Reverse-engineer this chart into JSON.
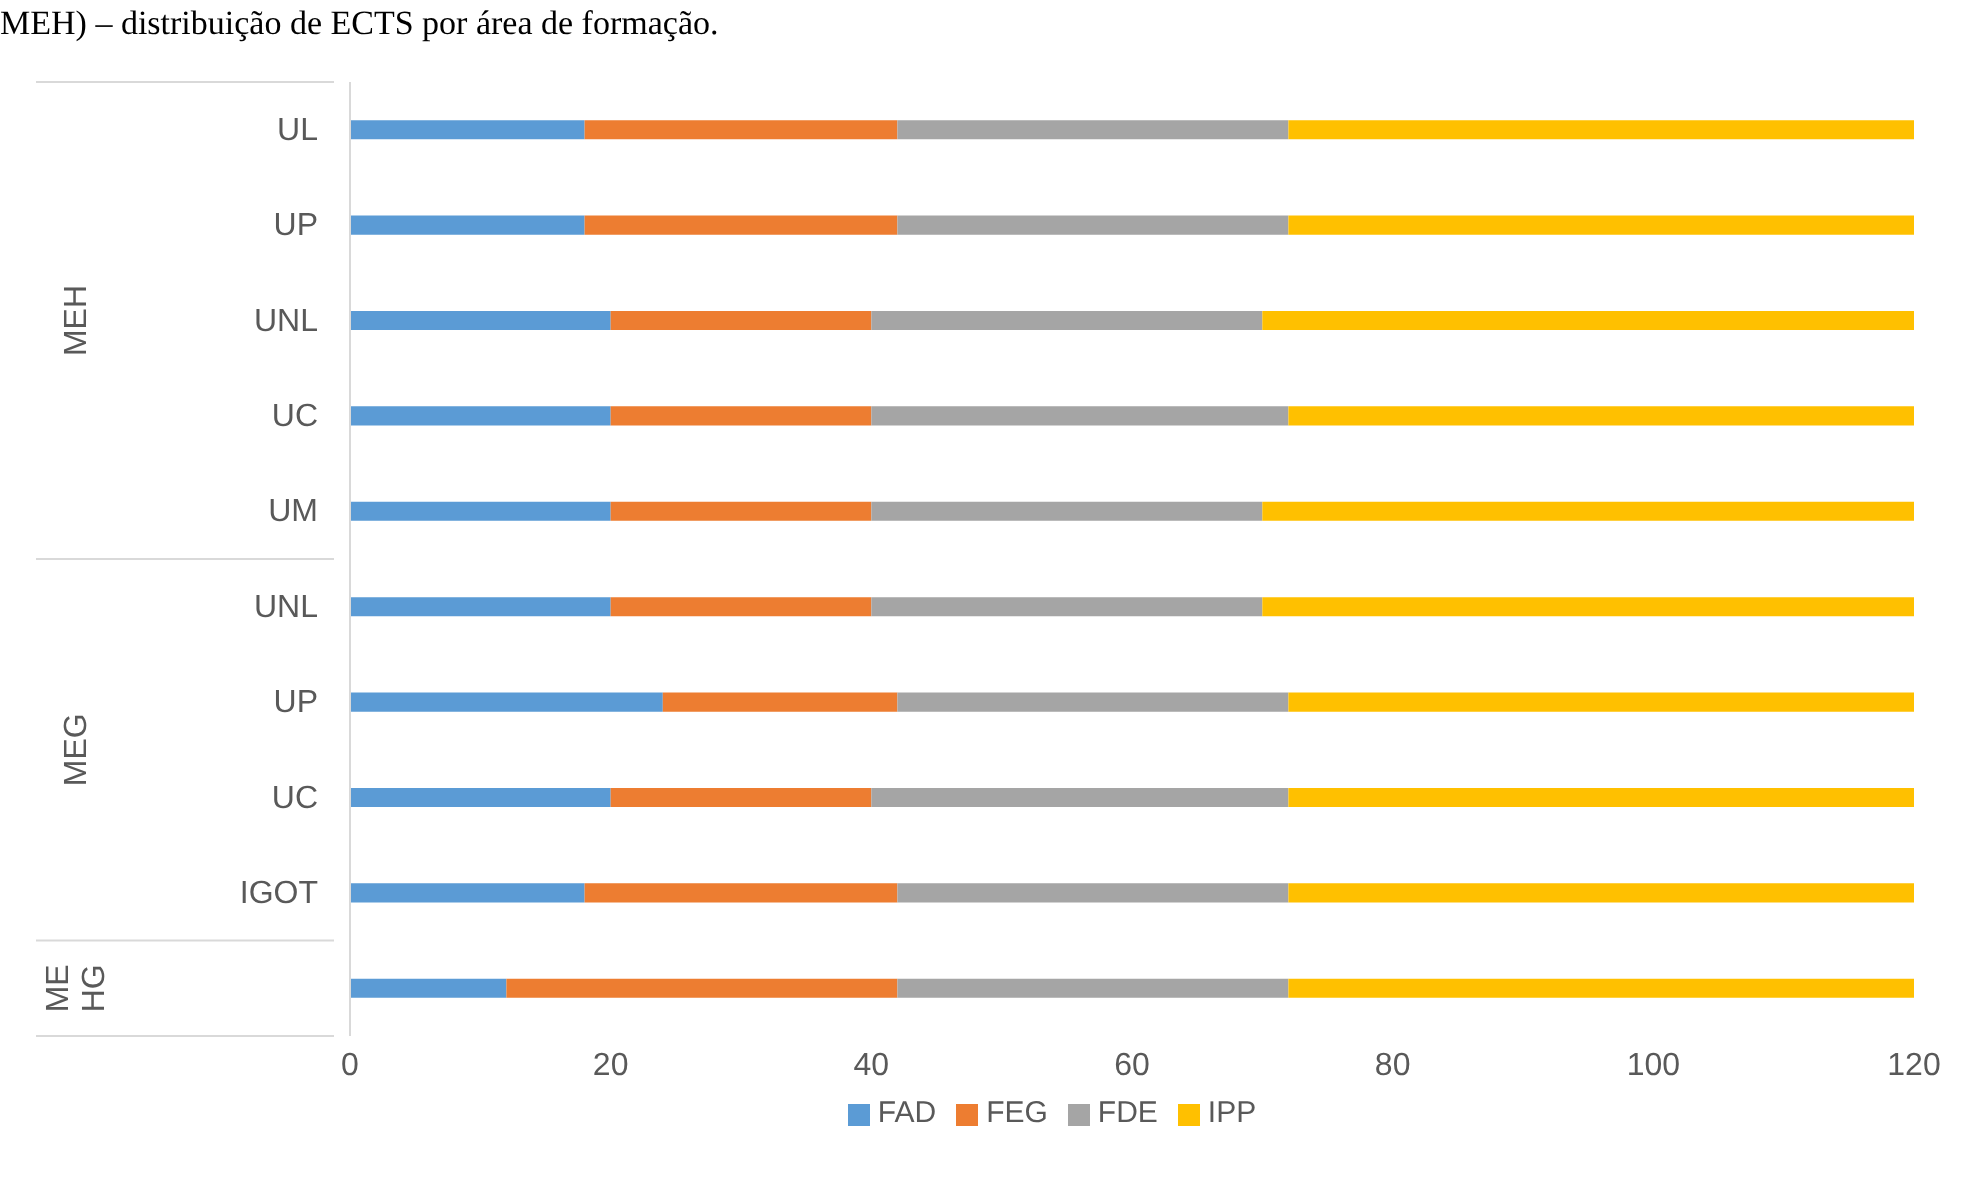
{
  "chart_data": {
    "type": "bar",
    "orientation": "horizontal",
    "stacked": true,
    "title": "MEH) – distribuição de ECTS por área de formação.",
    "categories": [
      "UL",
      "UP",
      "UNL",
      "UC",
      "UM",
      "UNL",
      "UP",
      "UC",
      "IGOT",
      null
    ],
    "annotations": [
      "MEH",
      "MEG",
      "ME HG"
    ],
    "series": [
      {
        "name": "FAD",
        "color": "#5b9bd5",
        "values": [
          18,
          18,
          20,
          20,
          20,
          20,
          24,
          20,
          18,
          12
        ]
      },
      {
        "name": "FEG",
        "color": "#ed7d31",
        "values": [
          24,
          24,
          20,
          20,
          20,
          20,
          18,
          20,
          24,
          30
        ]
      },
      {
        "name": "FDE",
        "color": "#a5a5a5",
        "values": [
          30,
          30,
          30,
          32,
          30,
          30,
          30,
          32,
          30,
          30
        ]
      },
      {
        "name": "IPP",
        "color": "#ffc000",
        "values": [
          48,
          48,
          50,
          48,
          50,
          50,
          48,
          48,
          48,
          48
        ]
      }
    ],
    "xlim": [
      0,
      120
    ],
    "xticks": [
      0,
      20,
      40,
      60,
      80,
      100,
      120
    ],
    "grid": false,
    "legend": "bottom"
  }
}
